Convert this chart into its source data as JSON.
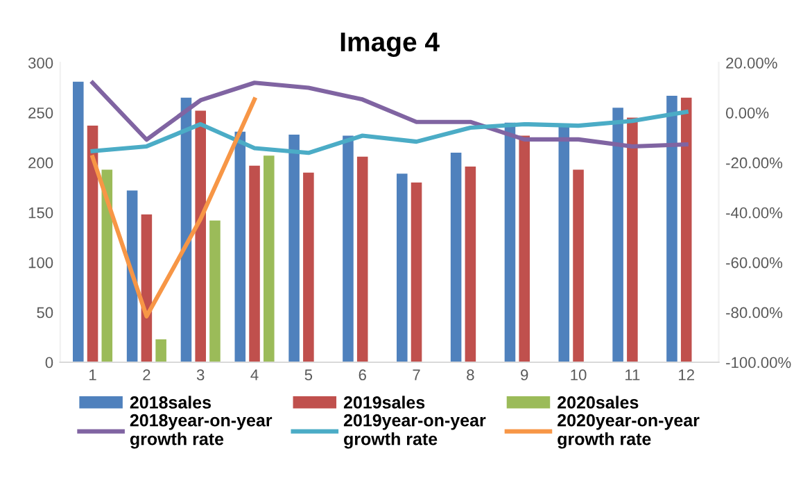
{
  "chart_data": {
    "type": "bar",
    "title": "Image 4",
    "categories": [
      "1",
      "2",
      "3",
      "4",
      "5",
      "6",
      "7",
      "8",
      "9",
      "10",
      "11",
      "12"
    ],
    "series": [
      {
        "name": "2018sales",
        "color": "#4f81bd",
        "values": [
          281,
          172,
          265,
          231,
          228,
          227,
          189,
          210,
          240,
          238,
          255,
          267
        ]
      },
      {
        "name": "2019sales",
        "color": "#c0504d",
        "values": [
          237,
          148,
          252,
          197,
          190,
          206,
          180,
          196,
          227,
          193,
          245,
          265
        ]
      },
      {
        "name": "2020sales",
        "color": "#9bbb59",
        "values": [
          193,
          23,
          142,
          207,
          null,
          null,
          null,
          null,
          null,
          null,
          null,
          null
        ]
      },
      {
        "name": "2018year-on-year\ngrowth rate",
        "type": "line",
        "axis": "y2",
        "color": "#8064a2",
        "values": [
          12,
          -10.8,
          5,
          12,
          10,
          5.3,
          -3.7,
          -3.7,
          -10.7,
          -10.7,
          -13.5,
          -12.7
        ]
      },
      {
        "name": "2019year-on-year\ngrowth rate",
        "type": "line",
        "axis": "y2",
        "color": "#4bacc6",
        "values": [
          -15.4,
          -13.5,
          -4.6,
          -14.2,
          -16.1,
          -9.2,
          -11.6,
          -6,
          -4.6,
          -5.2,
          -3.3,
          0.3
        ]
      },
      {
        "name": "2020year-on-year\ngrowth rate",
        "type": "line",
        "axis": "y2",
        "color": "#f79646",
        "values": [
          -17.8,
          -81.6,
          -42.6,
          5.3,
          null,
          null,
          null,
          null,
          null,
          null,
          null,
          null
        ]
      }
    ],
    "ylim": [
      0,
      300
    ],
    "yticks": [
      0,
      50,
      100,
      150,
      200,
      250,
      300
    ],
    "y2lim": [
      -100,
      20
    ],
    "y2ticks": [
      {
        "value": 20,
        "label": "20.00%"
      },
      {
        "value": 0,
        "label": "0.00%"
      },
      {
        "value": -20,
        "label": "-20.00%"
      },
      {
        "value": -40,
        "label": "-40.00%"
      },
      {
        "value": -60,
        "label": "-60.00%"
      },
      {
        "value": -80,
        "label": "-80.00%"
      },
      {
        "value": -100,
        "label": "-100.00%"
      }
    ],
    "legend": "bottom",
    "marker": "none",
    "line_style": "solid",
    "grid": false
  }
}
